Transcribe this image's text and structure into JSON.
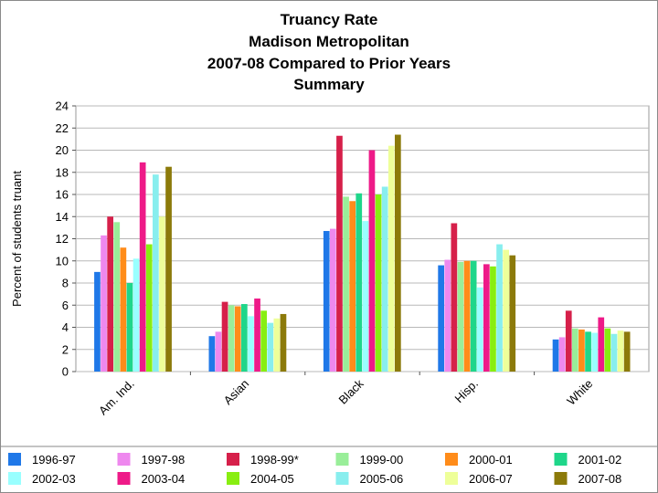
{
  "chart_data": {
    "type": "bar",
    "title": [
      "Truancy Rate",
      "Madison Metropolitan",
      "2007-08 Compared to Prior Years",
      "Summary"
    ],
    "ylabel": "Percent of students truant",
    "xlabel": "",
    "ylim": [
      0,
      24
    ],
    "yticks": [
      0,
      2,
      4,
      6,
      8,
      10,
      12,
      14,
      16,
      18,
      20,
      22,
      24
    ],
    "grid": "horizontal",
    "legend_position": "bottom",
    "categories": [
      "Am. Ind.",
      "Asian",
      "Black",
      "Hisp.",
      "White"
    ],
    "series": [
      {
        "name": "1996-97",
        "color": "#1f78e8",
        "values": [
          9.0,
          3.2,
          12.7,
          9.6,
          2.9
        ]
      },
      {
        "name": "1997-98",
        "color": "#ee88ee",
        "values": [
          12.3,
          3.6,
          12.9,
          10.1,
          3.1
        ]
      },
      {
        "name": "1998-99*",
        "color": "#d6204a",
        "values": [
          14.0,
          6.3,
          21.3,
          13.4,
          5.5
        ]
      },
      {
        "name": "1999-00",
        "color": "#99ee99",
        "values": [
          13.5,
          6.0,
          15.8,
          9.9,
          3.9
        ]
      },
      {
        "name": "2000-01",
        "color": "#ff8c1a",
        "values": [
          11.2,
          5.9,
          15.4,
          10.0,
          3.8
        ]
      },
      {
        "name": "2001-02",
        "color": "#1fd68a",
        "values": [
          8.0,
          6.1,
          16.1,
          10.0,
          3.6
        ]
      },
      {
        "name": "2002-03",
        "color": "#99ffff",
        "values": [
          10.2,
          5.0,
          13.6,
          7.6,
          3.5
        ]
      },
      {
        "name": "2003-04",
        "color": "#ee1a88",
        "values": [
          18.9,
          6.6,
          20.0,
          9.7,
          4.9
        ]
      },
      {
        "name": "2004-05",
        "color": "#88ee11",
        "values": [
          11.5,
          5.5,
          16.0,
          9.5,
          3.9
        ]
      },
      {
        "name": "2005-06",
        "color": "#88eeee",
        "values": [
          17.8,
          4.4,
          16.7,
          11.5,
          3.4
        ]
      },
      {
        "name": "2006-07",
        "color": "#eeff99",
        "values": [
          14.0,
          4.8,
          20.4,
          11.0,
          3.7
        ]
      },
      {
        "name": "2007-08",
        "color": "#8c7a0a",
        "values": [
          18.5,
          5.2,
          21.4,
          10.5,
          3.6
        ]
      }
    ]
  }
}
